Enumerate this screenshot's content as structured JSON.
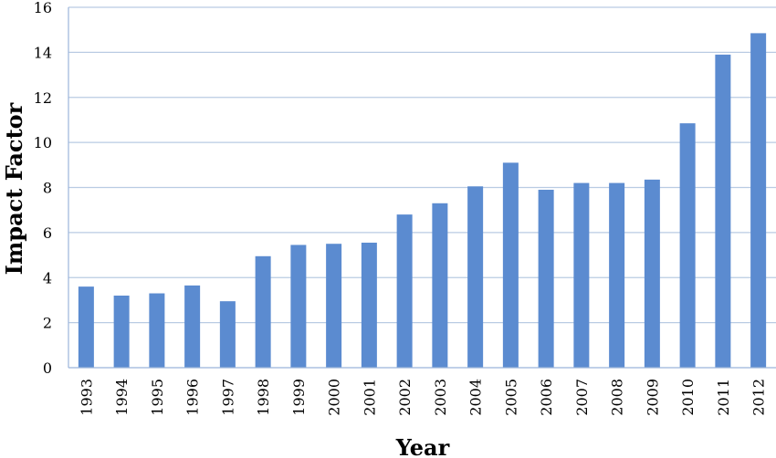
{
  "chart_data": {
    "type": "bar",
    "title": "",
    "xlabel": "Year",
    "ylabel": "Impact Factor",
    "categories": [
      "1993",
      "1994",
      "1995",
      "1996",
      "1997",
      "1998",
      "1999",
      "2000",
      "2001",
      "2002",
      "2003",
      "2004",
      "2005",
      "2006",
      "2007",
      "2008",
      "2009",
      "2010",
      "2011",
      "2012"
    ],
    "values": [
      3.6,
      3.2,
      3.3,
      3.65,
      2.95,
      4.95,
      5.45,
      5.5,
      5.55,
      6.8,
      7.3,
      8.05,
      9.1,
      7.9,
      8.2,
      8.2,
      8.35,
      10.85,
      13.9,
      14.85
    ],
    "ylim": [
      0,
      16
    ],
    "yticks": [
      0,
      2,
      4,
      6,
      8,
      10,
      12,
      14,
      16
    ],
    "ytick_labels": [
      "0",
      "2",
      "4",
      "6",
      "8",
      "10",
      "12",
      "14",
      "16"
    ],
    "grid": true,
    "legend": "none",
    "bar_color": "#5B8BD0",
    "grid_color": "#B9CBE3",
    "axis_color": "#9BB5DA"
  }
}
